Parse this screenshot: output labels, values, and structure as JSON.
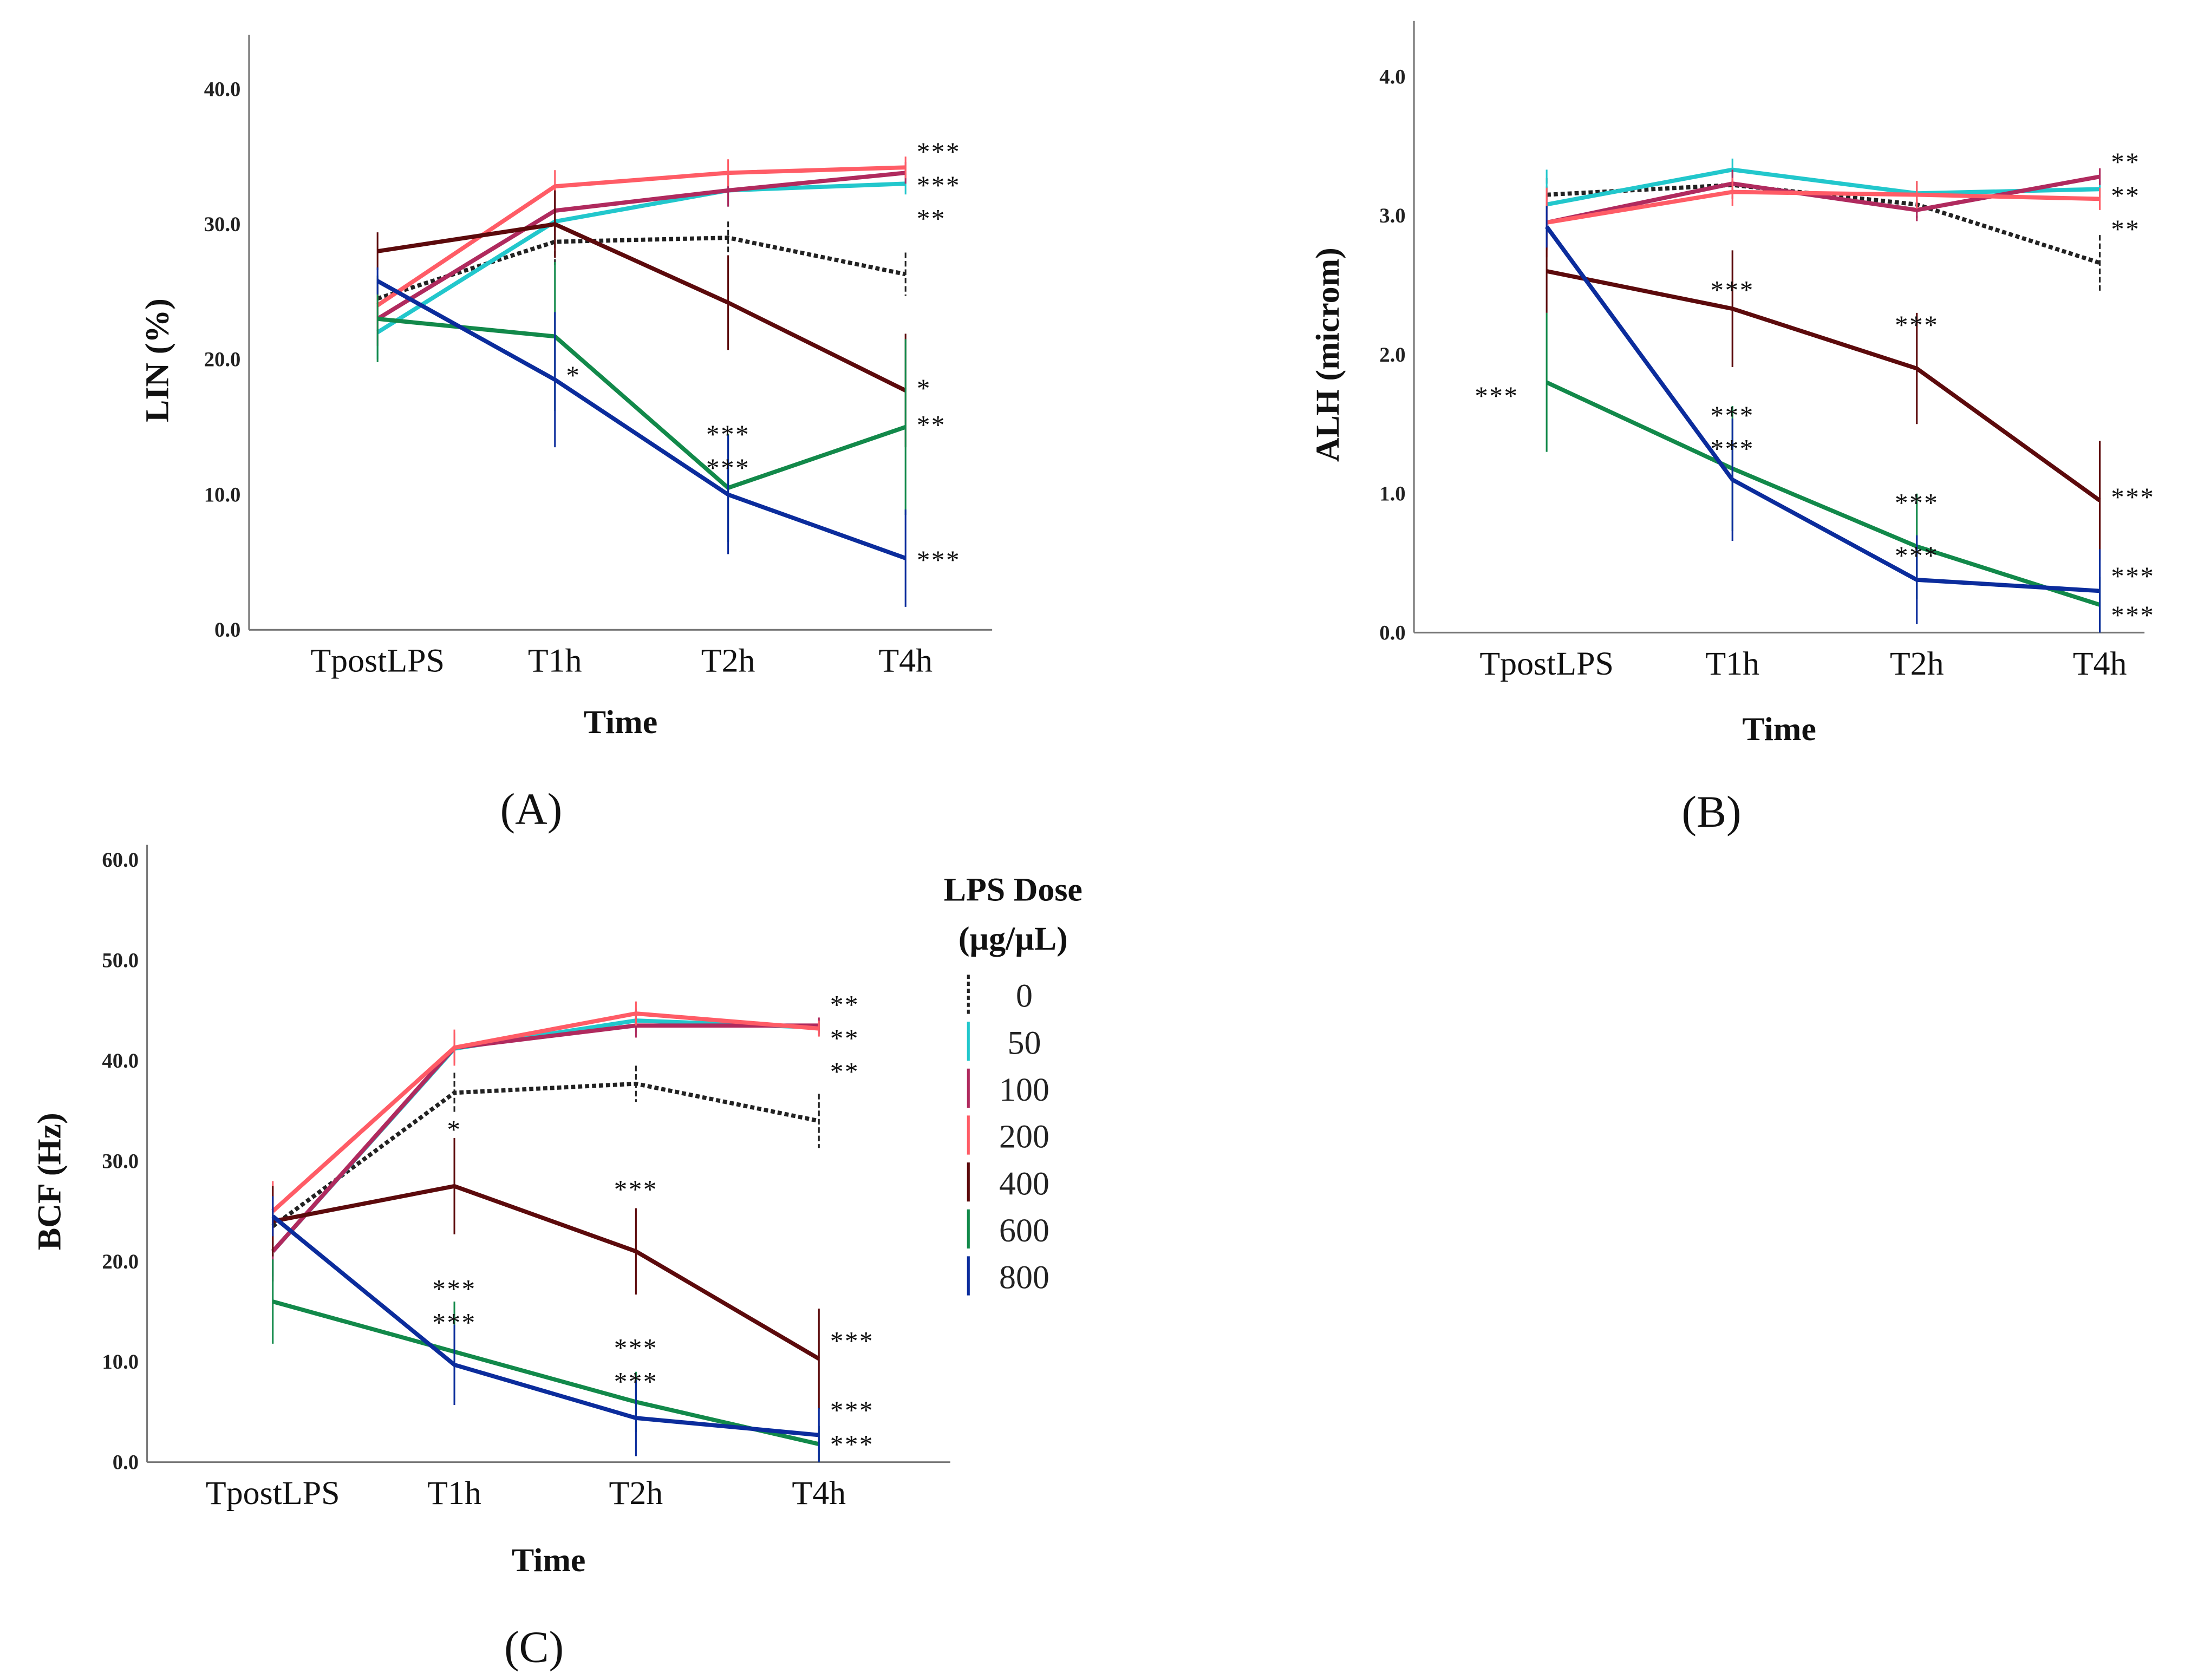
{
  "colors": {
    "0": "#222222",
    "50": "#22c7cc",
    "100": "#b02a5e",
    "200": "#ff5c66",
    "400": "#5c0a0c",
    "600": "#12894a",
    "800": "#0b2c9c"
  },
  "legend": {
    "title_line1": "LPS Dose",
    "title_line2": "(µg/µL)",
    "items": [
      "0",
      "50",
      "100",
      "200",
      "400",
      "600",
      "800"
    ]
  },
  "chart_data": [
    {
      "type": "line",
      "panel_label": "(A)",
      "xlabel": "Time",
      "ylabel": "LIN (%)",
      "ylim": [
        0,
        44
      ],
      "yticks": [
        "0.0",
        "10.0",
        "20.0",
        "30.0",
        "40.0"
      ],
      "ytick_values": [
        0,
        10,
        20,
        30,
        40
      ],
      "categories": [
        "TpostLPS",
        "T1h",
        "T2h",
        "T4h"
      ],
      "series": [
        {
          "name": "0",
          "values": [
            24.5,
            28.7,
            29.0,
            26.3
          ],
          "errors": [
            1.5,
            1.8,
            1.2,
            1.6
          ]
        },
        {
          "name": "50",
          "values": [
            22.0,
            30.2,
            32.5,
            33.0
          ],
          "errors": [
            2.0,
            1.5,
            1.2,
            0.8
          ]
        },
        {
          "name": "100",
          "values": [
            23.0,
            31.0,
            32.5,
            33.8
          ],
          "errors": [
            2.0,
            1.8,
            1.2,
            0.8
          ]
        },
        {
          "name": "200",
          "values": [
            24.0,
            32.8,
            33.8,
            34.2
          ],
          "errors": [
            2.0,
            1.2,
            1.0,
            0.8
          ]
        },
        {
          "name": "400",
          "values": [
            28.0,
            30.0,
            24.2,
            17.7
          ],
          "errors": [
            1.4,
            2.5,
            3.5,
            4.2
          ]
        },
        {
          "name": "600",
          "values": [
            23.0,
            21.7,
            10.5,
            15.0
          ],
          "errors": [
            3.2,
            5.5,
            4.0,
            6.5
          ]
        },
        {
          "name": "800",
          "values": [
            25.8,
            18.5,
            10.0,
            5.3
          ],
          "errors": [
            1.0,
            5.0,
            4.4,
            3.6
          ]
        }
      ],
      "annotations": [
        {
          "text": "***",
          "category": 3,
          "value": 35.0,
          "side": "right"
        },
        {
          "text": "***",
          "category": 3,
          "value": 33.6,
          "side": "right"
        },
        {
          "text": "**",
          "category": 3,
          "value": 32.2,
          "side": "right"
        },
        {
          "text": "*",
          "category": 1,
          "value": 19.0,
          "side": "right"
        },
        {
          "text": "***",
          "category": 2,
          "value": 14.5,
          "side": "center"
        },
        {
          "text": "***",
          "category": 2,
          "value": 12.3,
          "side": "center"
        },
        {
          "text": "*",
          "category": 3,
          "value": 17.5,
          "side": "right"
        },
        {
          "text": "**",
          "category": 3,
          "value": 14.8,
          "side": "right"
        },
        {
          "text": "***",
          "category": 3,
          "value": 4.8,
          "side": "right"
        }
      ]
    },
    {
      "type": "line",
      "panel_label": "(B)",
      "xlabel": "Time",
      "ylabel": "ALH (microm)",
      "ylim": [
        0,
        4.4
      ],
      "yticks": [
        "0.0",
        "1.0",
        "2.0",
        "3.0",
        "4.0"
      ],
      "ytick_values": [
        0,
        1,
        2,
        3,
        4
      ],
      "categories": [
        "TpostLPS",
        "T1h",
        "T2h",
        "T4h"
      ],
      "series": [
        {
          "name": "0",
          "values": [
            3.15,
            3.22,
            3.08,
            2.66
          ],
          "errors": [
            0.12,
            0.1,
            0.1,
            0.2
          ]
        },
        {
          "name": "50",
          "values": [
            3.08,
            3.33,
            3.16,
            3.19
          ],
          "errors": [
            0.25,
            0.08,
            0.08,
            0.06
          ]
        },
        {
          "name": "100",
          "values": [
            2.95,
            3.23,
            3.04,
            3.28
          ],
          "errors": [
            0.2,
            0.1,
            0.08,
            0.06
          ]
        },
        {
          "name": "200",
          "values": [
            2.95,
            3.17,
            3.15,
            3.12
          ],
          "errors": [
            0.25,
            0.1,
            0.1,
            0.08
          ]
        },
        {
          "name": "400",
          "values": [
            2.6,
            2.33,
            1.9,
            0.95
          ],
          "errors": [
            0.3,
            0.42,
            0.4,
            0.43
          ]
        },
        {
          "name": "600",
          "values": [
            1.8,
            1.18,
            0.62,
            0.2
          ],
          "errors": [
            0.5,
            0.45,
            0.38,
            0.2
          ]
        },
        {
          "name": "800",
          "values": [
            2.92,
            1.1,
            0.38,
            0.3
          ],
          "errors": [
            0.15,
            0.44,
            0.32,
            0.3
          ]
        }
      ],
      "annotations": [
        {
          "text": "**",
          "category": 3,
          "value": 3.36,
          "side": "right"
        },
        {
          "text": "**",
          "category": 3,
          "value": 3.2,
          "side": "right"
        },
        {
          "text": "**",
          "category": 3,
          "value": 3.05,
          "side": "right"
        },
        {
          "text": "***",
          "category": 1,
          "value": 2.48,
          "side": "center"
        },
        {
          "text": "***",
          "category": 2,
          "value": 2.23,
          "side": "center"
        },
        {
          "text": "***",
          "category": 0,
          "value": 1.72,
          "side": "left"
        },
        {
          "text": "***",
          "category": 1,
          "value": 1.58,
          "side": "center"
        },
        {
          "text": "***",
          "category": 1,
          "value": 1.34,
          "side": "center"
        },
        {
          "text": "***",
          "category": 2,
          "value": 0.95,
          "side": "center"
        },
        {
          "text": "***",
          "category": 2,
          "value": 0.57,
          "side": "center"
        },
        {
          "text": "***",
          "category": 3,
          "value": 0.95,
          "side": "right"
        },
        {
          "text": "***",
          "category": 3,
          "value": 0.38,
          "side": "right"
        },
        {
          "text": "***",
          "category": 3,
          "value": 0.1,
          "side": "right"
        }
      ]
    },
    {
      "type": "line",
      "panel_label": "(C)",
      "xlabel": "Time",
      "ylabel": "BCF (Hz)",
      "ylim": [
        0,
        61.5
      ],
      "yticks": [
        "0.0",
        "10.0",
        "20.0",
        "30.0",
        "40.0",
        "50.0",
        "60.0"
      ],
      "ytick_values": [
        0,
        10,
        20,
        30,
        40,
        50,
        60
      ],
      "categories": [
        "TpostLPS",
        "T1h",
        "T2h",
        "T4h"
      ],
      "series": [
        {
          "name": "0",
          "values": [
            23.5,
            36.8,
            37.7,
            34.0
          ],
          "errors": [
            2.0,
            2.0,
            1.8,
            2.7
          ]
        },
        {
          "name": "50",
          "values": [
            21.0,
            41.2,
            44.0,
            43.3
          ],
          "errors": [
            2.5,
            1.5,
            1.2,
            0.8
          ]
        },
        {
          "name": "100",
          "values": [
            21.0,
            41.3,
            43.5,
            43.5
          ],
          "errors": [
            3.0,
            1.5,
            1.2,
            0.8
          ]
        },
        {
          "name": "200",
          "values": [
            25.0,
            41.3,
            44.7,
            43.2
          ],
          "errors": [
            3.0,
            1.8,
            1.2,
            0.8
          ]
        },
        {
          "name": "400",
          "values": [
            24.0,
            27.5,
            21.0,
            10.3
          ],
          "errors": [
            3.5,
            4.8,
            4.3,
            5.0
          ]
        },
        {
          "name": "600",
          "values": [
            16.0,
            11.0,
            6.0,
            1.8
          ],
          "errors": [
            4.2,
            5.0,
            3.0,
            1.8
          ]
        },
        {
          "name": "800",
          "values": [
            24.5,
            9.7,
            4.4,
            2.7
          ],
          "errors": [
            2.0,
            4.0,
            3.8,
            2.7
          ]
        }
      ],
      "annotations": [
        {
          "text": "**",
          "category": 3,
          "value": 45.0,
          "side": "right"
        },
        {
          "text": "**",
          "category": 3,
          "value": 43.3,
          "side": "right"
        },
        {
          "text": "**",
          "category": 3,
          "value": 41.6,
          "side": "right"
        },
        {
          "text": "*",
          "category": 1,
          "value": 33.3,
          "side": "center"
        },
        {
          "text": "***",
          "category": 2,
          "value": 27.3,
          "side": "center"
        },
        {
          "text": "***",
          "category": 1,
          "value": 17.4,
          "side": "center"
        },
        {
          "text": "***",
          "category": 1,
          "value": 14.3,
          "side": "center"
        },
        {
          "text": "***",
          "category": 2,
          "value": 11.5,
          "side": "center"
        },
        {
          "text": "***",
          "category": 2,
          "value": 8.5,
          "side": "center"
        },
        {
          "text": "***",
          "category": 3,
          "value": 11.5,
          "side": "right"
        },
        {
          "text": "***",
          "category": 3,
          "value": 4.6,
          "side": "right"
        },
        {
          "text": "***",
          "category": 3,
          "value": 1.2,
          "side": "right"
        }
      ]
    }
  ]
}
